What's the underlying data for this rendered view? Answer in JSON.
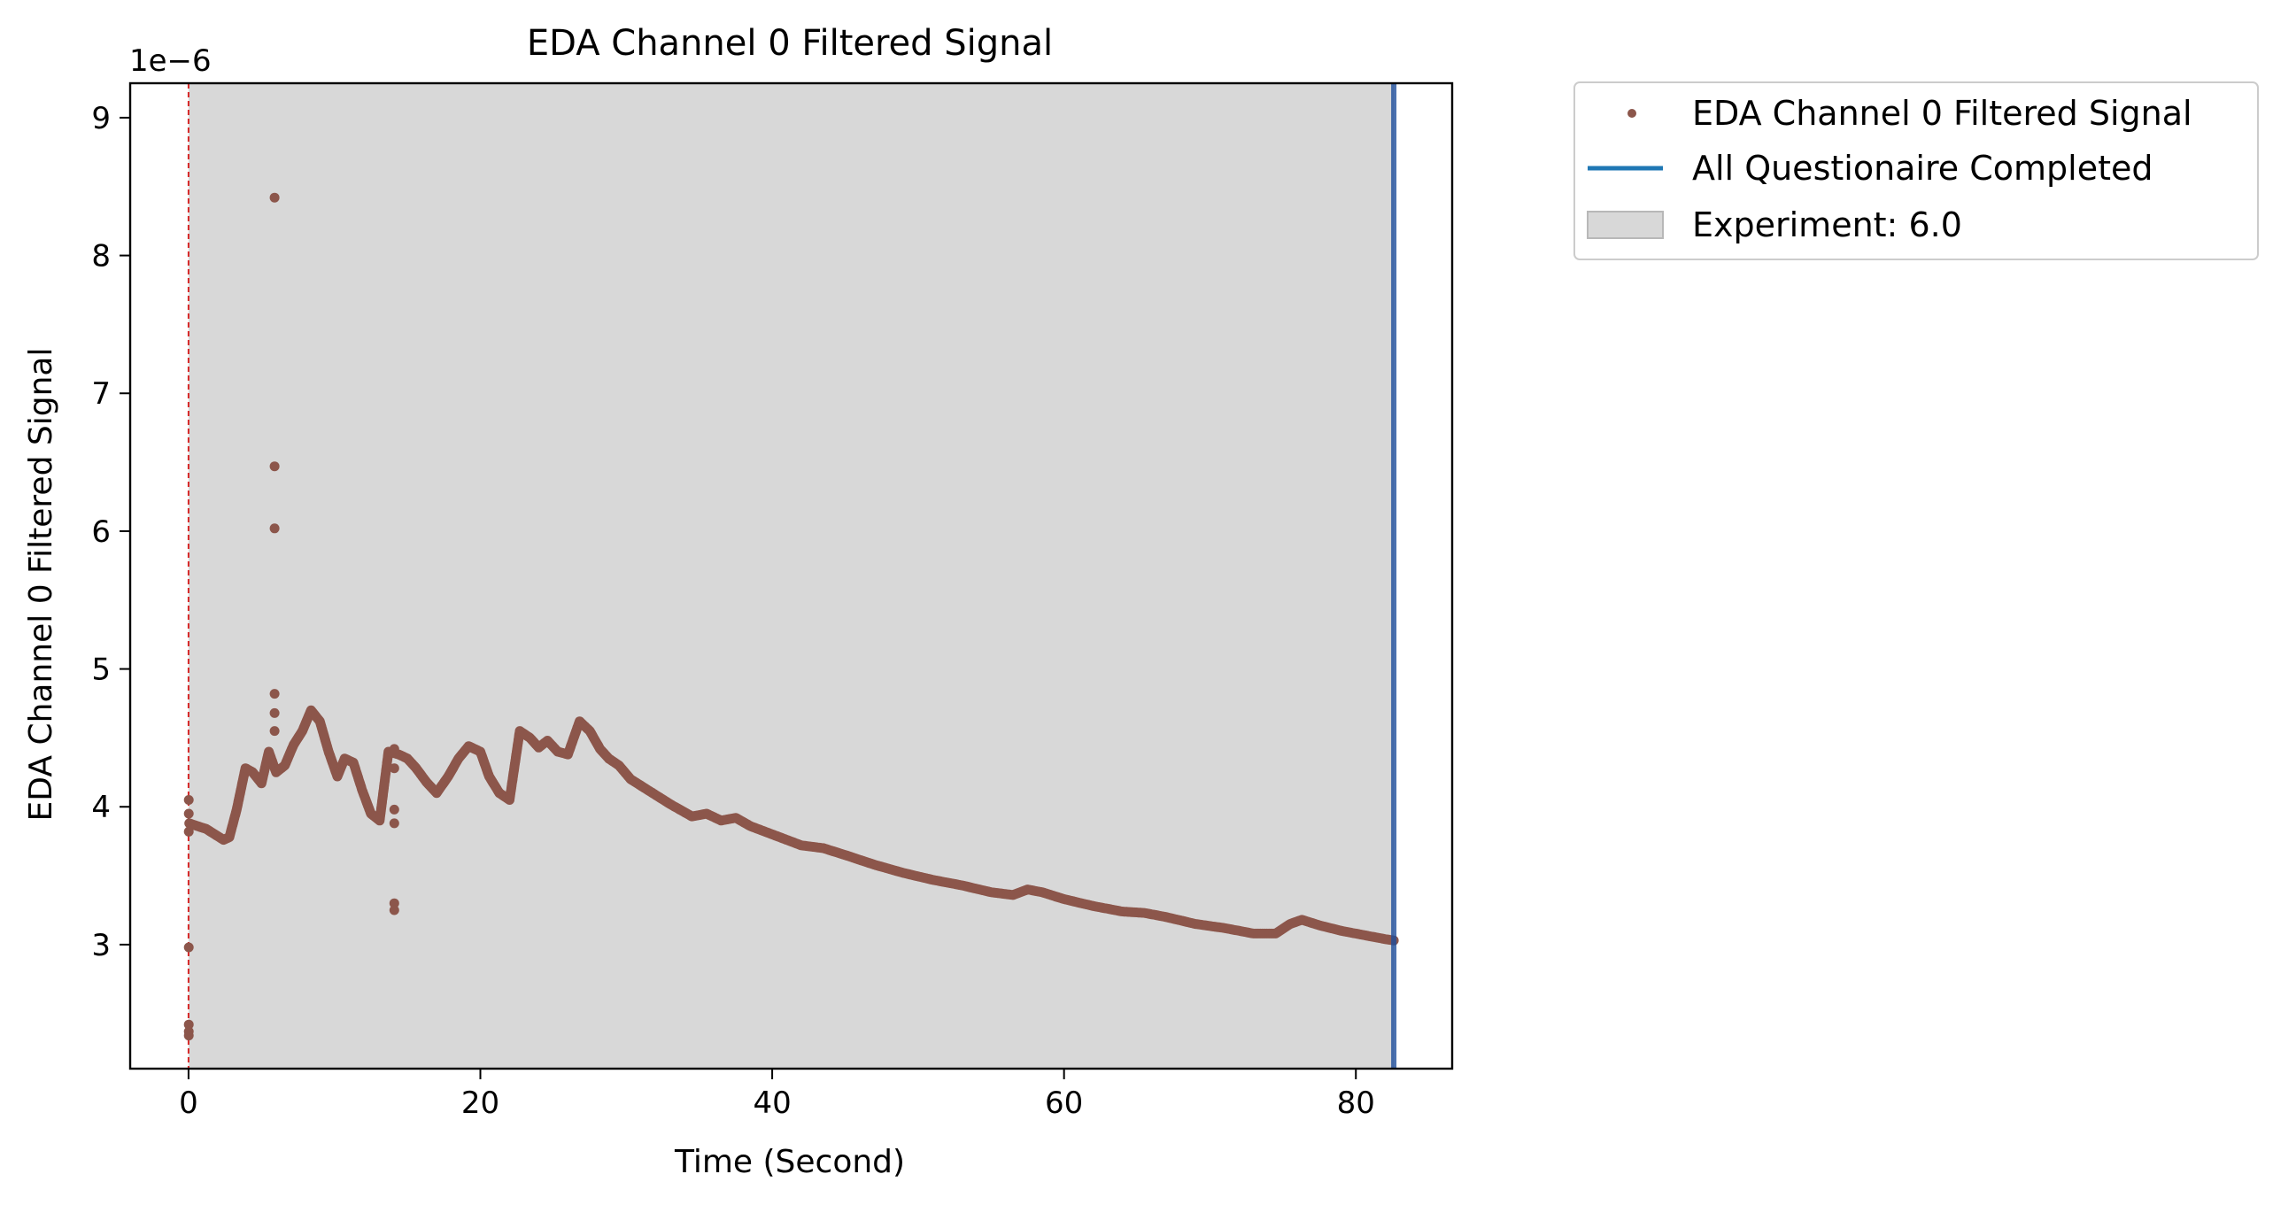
{
  "chart_data": {
    "type": "scatter",
    "title": "EDA Channel 0 Filtered Signal",
    "xlabel": "Time (Second)",
    "ylabel": "EDA Channel 0 Filtered Signal",
    "y_offset_label": "1e−6",
    "xlim": [
      -4,
      86.6
    ],
    "ylim": [
      2.1,
      9.25
    ],
    "x_ticks": [
      0,
      20,
      40,
      60,
      80
    ],
    "x_tick_labels": [
      "0",
      "20",
      "40",
      "60",
      "80"
    ],
    "y_ticks": [
      3,
      4,
      5,
      6,
      7,
      8,
      9
    ],
    "y_tick_labels": [
      "3",
      "4",
      "5",
      "6",
      "7",
      "8",
      "9"
    ],
    "grid": false,
    "legend_position": "outside-upper-right",
    "legend": [
      {
        "label": "EDA Channel 0 Filtered Signal",
        "kind": "marker",
        "color": "#8c564b"
      },
      {
        "label": "All Questionaire Completed",
        "kind": "line",
        "color": "#1f77b4"
      },
      {
        "label": "Experiment: 6.0",
        "kind": "patch",
        "color": "#d8d8d8"
      }
    ],
    "shaded_region": {
      "label": "Experiment: 6.0",
      "x_start": 0,
      "x_end": 82.6,
      "color": "#d8d8d8"
    },
    "vertical_lines": [
      {
        "x": 0,
        "style": "dashed",
        "color": "#d62728"
      },
      {
        "x": 82.6,
        "style": "solid",
        "color": "#1f77b4",
        "label": "All Questionaire Completed"
      }
    ],
    "series": [
      {
        "name": "EDA Channel 0 Filtered Signal",
        "color": "#8c564b",
        "marker": "circle",
        "x": [
          0.05,
          0.6,
          1.2,
          1.8,
          2.4,
          2.8,
          3.3,
          3.9,
          4.4,
          5.0,
          5.5,
          6.0,
          6.6,
          7.2,
          7.8,
          8.4,
          9.0,
          9.6,
          10.2,
          10.7,
          11.3,
          11.9,
          12.5,
          13.1,
          13.7,
          14.4,
          15.0,
          15.6,
          16.3,
          17.0,
          17.8,
          18.5,
          19.2,
          20.0,
          20.6,
          21.3,
          22.0,
          22.7,
          23.4,
          24.0,
          24.6,
          25.3,
          26.0,
          26.8,
          27.5,
          28.2,
          28.8,
          29.5,
          30.3,
          31.5,
          33.0,
          34.5,
          35.5,
          36.5,
          37.5,
          38.5,
          40.0,
          42.0,
          43.5,
          45.0,
          47.0,
          49.0,
          51.0,
          53.0,
          55.0,
          56.5,
          57.5,
          58.5,
          60.0,
          62.0,
          64.0,
          65.5,
          67.0,
          69.0,
          71.0,
          73.0,
          74.5,
          75.5,
          76.3,
          77.5,
          79.0,
          80.5,
          82.0,
          82.6,
          0.02,
          0.02,
          0.02,
          0.02,
          0.02,
          0.02,
          0.02,
          5.9,
          5.9,
          5.9,
          5.9,
          5.9,
          5.9,
          14.1,
          14.1,
          14.1,
          14.1,
          14.1,
          14.1
        ],
        "y": [
          3.88,
          3.86,
          3.84,
          3.8,
          3.76,
          3.78,
          3.98,
          4.28,
          4.25,
          4.17,
          4.4,
          4.25,
          4.3,
          4.45,
          4.55,
          4.7,
          4.62,
          4.4,
          4.22,
          4.35,
          4.32,
          4.12,
          3.95,
          3.9,
          4.4,
          4.38,
          4.35,
          4.28,
          4.18,
          4.1,
          4.22,
          4.35,
          4.44,
          4.4,
          4.22,
          4.1,
          4.05,
          4.55,
          4.5,
          4.43,
          4.48,
          4.4,
          4.38,
          4.62,
          4.55,
          4.42,
          4.35,
          4.3,
          4.2,
          4.12,
          4.02,
          3.93,
          3.95,
          3.9,
          3.92,
          3.86,
          3.8,
          3.72,
          3.7,
          3.65,
          3.58,
          3.52,
          3.47,
          3.43,
          3.38,
          3.36,
          3.4,
          3.38,
          3.33,
          3.28,
          3.24,
          3.23,
          3.2,
          3.15,
          3.12,
          3.08,
          3.08,
          3.15,
          3.18,
          3.14,
          3.1,
          3.07,
          3.04,
          3.03,
          2.98,
          2.42,
          2.37,
          2.34,
          4.05,
          3.95,
          3.82,
          8.42,
          6.47,
          6.02,
          4.82,
          4.68,
          4.55,
          3.3,
          3.25,
          3.98,
          3.88,
          4.28,
          4.42
        ]
      }
    ]
  }
}
